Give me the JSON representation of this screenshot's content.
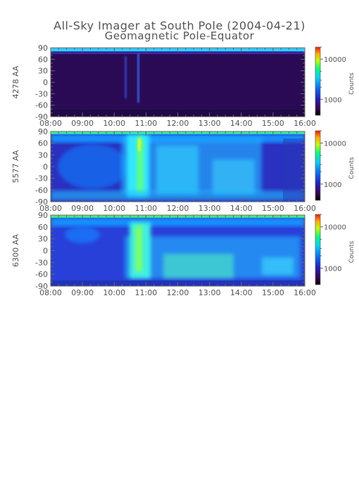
{
  "title_line1": "All-Sky Imager at South Pole (2004-04-21)",
  "title_line2": "Geomagnetic Pole-Equator",
  "chart_data": [
    {
      "type": "heatmap",
      "ylabel": "4278 AA",
      "x_ticks": [
        "08:00",
        "09:00",
        "10:00",
        "11:00",
        "12:00",
        "13:00",
        "14:00",
        "15:00",
        "16:00"
      ],
      "y_ticks": [
        90,
        60,
        30,
        0,
        -30,
        -60,
        -90
      ],
      "xlim": [
        "08:00",
        "16:00"
      ],
      "ylim": [
        -90,
        90
      ],
      "colorbar_label": "Counts",
      "colorbar_ticks": [
        1000,
        10000
      ],
      "colorbar_tick_labels": [
        "1000",
        "10000"
      ],
      "colorscale": "log rainbow (black-purple-blue-cyan-green-yellow-red)",
      "intensity": "low overall; faint vertical streaks near 10:45-10:55"
    },
    {
      "type": "heatmap",
      "ylabel": "5577 AA",
      "x_ticks": [
        "08:00",
        "09:00",
        "10:00",
        "11:00",
        "12:00",
        "13:00",
        "14:00",
        "15:00",
        "16:00"
      ],
      "y_ticks": [
        90,
        60,
        30,
        0,
        -30,
        -60,
        -90
      ],
      "xlim": [
        "08:00",
        "16:00"
      ],
      "ylim": [
        -90,
        90
      ],
      "colorbar_label": "Counts",
      "colorbar_ticks": [
        1000,
        10000
      ],
      "colorbar_tick_labels": [
        "1000",
        "10000"
      ],
      "colorscale": "log rainbow (black-purple-blue-cyan-green-yellow-red)",
      "intensity": "moderate background; bright auroral band from 10:30 to 11:00 reaching yellow; enhanced emission across 11:00-15:30"
    },
    {
      "type": "heatmap",
      "ylabel": "6300 AA",
      "x_ticks": [
        "08:00",
        "09:00",
        "10:00",
        "11:00",
        "12:00",
        "13:00",
        "14:00",
        "15:00",
        "16:00"
      ],
      "y_ticks": [
        90,
        60,
        30,
        0,
        -30,
        -60,
        -90
      ],
      "xlim": [
        "08:00",
        "16:00"
      ],
      "ylim": [
        -90,
        90
      ],
      "colorbar_label": "Counts",
      "colorbar_ticks": [
        1000,
        10000
      ],
      "colorbar_tick_labels": [
        "1000",
        "10000"
      ],
      "colorscale": "log rainbow (black-purple-blue-cyan-green-yellow-red)",
      "intensity": "blue background; bright green feature 10:40-11:10; broad cyan/green emission between -70 and 0 from 11:00 to 16:00"
    }
  ]
}
